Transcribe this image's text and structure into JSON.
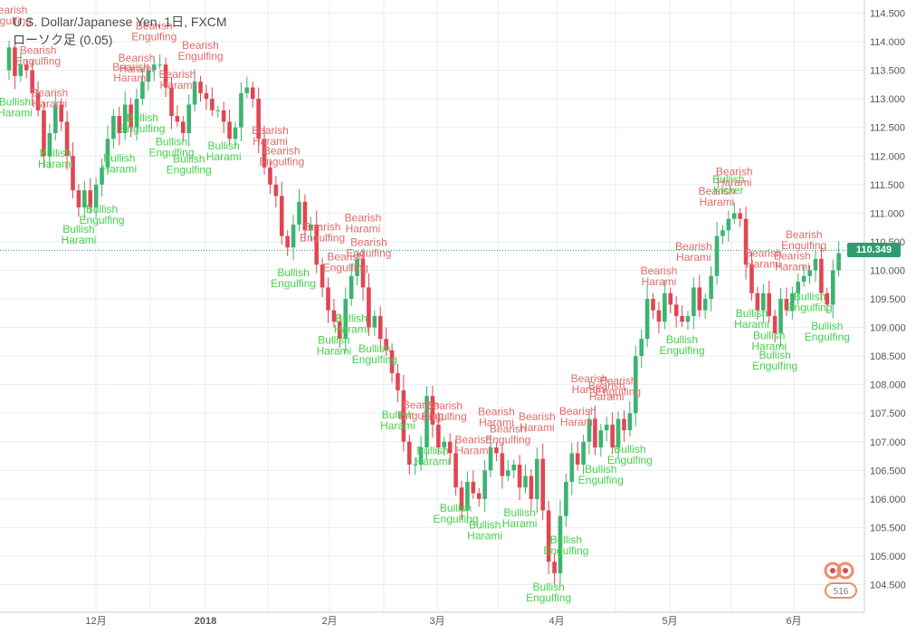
{
  "header": {
    "title": "U.S. Dollar/Japanese Yen, 1日, FXCM",
    "subtitle": "ローソク足 (0.05)"
  },
  "current_price": "110.349",
  "brand_counter": "516",
  "colors": {
    "bull": "#3cb371",
    "bear": "#e04652",
    "bull_label": "#44d14b",
    "bear_label": "#e36a6a",
    "grid": "#e8eef4",
    "axis_text": "#555555",
    "price_line": "#2e9e6e"
  },
  "chart_data": {
    "type": "candlestick",
    "title": "U.S. Dollar/Japanese Yen, 1日, FXCM",
    "ylim": [
      104.2,
      114.6
    ],
    "yticks": [
      "114.500",
      "114.000",
      "113.500",
      "113.000",
      "112.500",
      "112.000",
      "111.500",
      "111.000",
      "110.500",
      "110.000",
      "109.500",
      "109.000",
      "108.500",
      "108.000",
      "107.500",
      "107.000",
      "106.500",
      "106.000",
      "105.500",
      "105.000",
      "104.500"
    ],
    "xticks": [
      "12月",
      "2018",
      "2月",
      "3月",
      "4月",
      "5月",
      "6月"
    ],
    "last_price": 110.349,
    "grid": true,
    "closes": [
      113.9,
      113.4,
      113.6,
      113.5,
      113.1,
      112.8,
      112.0,
      112.4,
      112.9,
      112.6,
      112.0,
      111.4,
      111.1,
      111.4,
      111.1,
      111.5,
      111.8,
      112.3,
      112.7,
      112.4,
      112.9,
      112.5,
      113.0,
      113.3,
      113.5,
      113.6,
      113.6,
      113.2,
      112.7,
      112.6,
      112.4,
      112.9,
      113.3,
      113.1,
      113.0,
      112.8,
      112.8,
      112.6,
      112.3,
      112.5,
      113.1,
      113.2,
      113.0,
      112.3,
      111.8,
      111.5,
      111.3,
      110.6,
      110.4,
      110.8,
      111.2,
      110.7,
      110.8,
      110.1,
      109.7,
      109.3,
      109.1,
      108.8,
      109.5,
      109.9,
      110.2,
      109.7,
      109.0,
      109.2,
      108.8,
      108.6,
      108.2,
      107.9,
      107.0,
      106.6,
      106.6,
      106.9,
      107.8,
      107.3,
      106.9,
      107.0,
      106.8,
      106.2,
      105.8,
      106.3,
      106.1,
      106.0,
      106.5,
      106.9,
      106.8,
      106.4,
      106.5,
      106.6,
      106.2,
      106.4,
      106.0,
      106.7,
      105.8,
      104.9,
      104.7,
      105.7,
      106.3,
      106.8,
      106.6,
      107.0,
      107.4,
      106.9,
      107.2,
      107.3,
      106.9,
      107.4,
      107.2,
      107.5,
      108.5,
      108.8,
      109.5,
      109.3,
      109.1,
      109.6,
      109.4,
      109.2,
      109.1,
      109.2,
      109.7,
      109.3,
      109.5,
      109.9,
      110.6,
      110.7,
      110.9,
      111.0,
      110.9,
      110.1,
      109.6,
      109.3,
      109.6,
      109.2,
      108.9,
      109.5,
      109.3,
      109.6,
      109.8,
      109.9,
      110.0,
      110.2,
      109.6,
      109.4,
      110.0,
      110.3
    ],
    "annotations": [
      {
        "i": 0,
        "text": [
          "Bearish",
          "Engulfing"
        ],
        "pos": "above"
      },
      {
        "i": 1,
        "text": [
          "Bullish",
          "Harami"
        ],
        "pos": "below"
      },
      {
        "i": 5,
        "text": [
          "Bearish",
          "Engulfing"
        ],
        "pos": "above"
      },
      {
        "i": 7,
        "text": [
          "Bearish",
          "Harami"
        ],
        "pos": "above"
      },
      {
        "i": 8,
        "text": [
          "Bullish",
          "Harami"
        ],
        "pos": "below"
      },
      {
        "i": 12,
        "text": [
          "Bullish",
          "Harami"
        ],
        "pos": "below"
      },
      {
        "i": 16,
        "text": [
          "Bullish",
          "Engulfing"
        ],
        "pos": "below"
      },
      {
        "i": 19,
        "text": [
          "Bullish",
          "Harami"
        ],
        "pos": "below"
      },
      {
        "i": 21,
        "text": [
          "Bearish",
          "Harami"
        ],
        "pos": "above"
      },
      {
        "i": 22,
        "text": [
          "Bearish",
          "Harami"
        ],
        "pos": "above"
      },
      {
        "i": 23,
        "text": [
          "Bullish",
          "Engulfing"
        ],
        "pos": "below"
      },
      {
        "i": 25,
        "text": [
          "Bearish",
          "Engulfing"
        ],
        "pos": "above"
      },
      {
        "i": 28,
        "text": [
          "Bullish",
          "Engulfing"
        ],
        "pos": "below"
      },
      {
        "i": 29,
        "text": [
          "Bearish",
          "Harami"
        ],
        "pos": "above"
      },
      {
        "i": 31,
        "text": [
          "Bullish",
          "Engulfing"
        ],
        "pos": "below"
      },
      {
        "i": 33,
        "text": [
          "Bearish",
          "Engulfing"
        ],
        "pos": "above"
      },
      {
        "i": 37,
        "text": [
          "Bullish",
          "Harami"
        ],
        "pos": "below"
      },
      {
        "i": 45,
        "text": [
          "Bearish",
          "Harami"
        ],
        "pos": "above"
      },
      {
        "i": 47,
        "text": [
          "Bearish",
          "Engulfing"
        ],
        "pos": "above"
      },
      {
        "i": 49,
        "text": [
          "Bullish",
          "Engulfing"
        ],
        "pos": "below"
      },
      {
        "i": 54,
        "text": [
          "Bearish",
          "Engulfing"
        ],
        "pos": "above"
      },
      {
        "i": 56,
        "text": [
          "Bullish",
          "Harami"
        ],
        "pos": "below"
      },
      {
        "i": 58,
        "text": [
          "Bearish",
          "Engulfing"
        ],
        "pos": "above"
      },
      {
        "i": 59,
        "text": [
          "Bullish",
          "Harami"
        ],
        "pos": "below"
      },
      {
        "i": 61,
        "text": [
          "Bearish",
          "Harami"
        ],
        "pos": "above"
      },
      {
        "i": 62,
        "text": [
          "Bearish",
          "Engulfing"
        ],
        "pos": "above"
      },
      {
        "i": 63,
        "text": [
          "Bullish",
          "Engulfing"
        ],
        "pos": "below"
      },
      {
        "i": 67,
        "text": [
          "Bullish",
          "Harami"
        ],
        "pos": "below"
      },
      {
        "i": 71,
        "text": [
          "Bearish",
          "Engulfing"
        ],
        "pos": "above"
      },
      {
        "i": 73,
        "text": [
          "Bullish",
          "Harami"
        ],
        "pos": "below"
      },
      {
        "i": 75,
        "text": [
          "Bearish",
          "Engulfing"
        ],
        "pos": "above"
      },
      {
        "i": 77,
        "text": [
          "Bullish",
          "Engulfing"
        ],
        "pos": "below"
      },
      {
        "i": 80,
        "text": [
          "Bearish",
          "Harami"
        ],
        "pos": "above"
      },
      {
        "i": 82,
        "text": [
          "Bullish",
          "Harami"
        ],
        "pos": "below"
      },
      {
        "i": 84,
        "text": [
          "Bearish",
          "Harami"
        ],
        "pos": "above"
      },
      {
        "i": 86,
        "text": [
          "Bearish",
          "Engulfing"
        ],
        "pos": "above"
      },
      {
        "i": 88,
        "text": [
          "Bullish",
          "Harami"
        ],
        "pos": "below"
      },
      {
        "i": 91,
        "text": [
          "Bearish",
          "Harami"
        ],
        "pos": "above"
      },
      {
        "i": 93,
        "text": [
          "Bullish",
          "Engulfing"
        ],
        "pos": "below"
      },
      {
        "i": 96,
        "text": [
          "Bullish",
          "Engulfing"
        ],
        "pos": "below"
      },
      {
        "i": 98,
        "text": [
          "Bearish",
          "Harami"
        ],
        "pos": "above"
      },
      {
        "i": 100,
        "text": [
          "Bearish",
          "Harami"
        ],
        "pos": "above"
      },
      {
        "i": 102,
        "text": [
          "Bullish",
          "Engulfing"
        ],
        "pos": "below"
      },
      {
        "i": 103,
        "text": [
          "Bearish",
          "Harami"
        ],
        "pos": "above"
      },
      {
        "i": 105,
        "text": [
          "Bearish",
          "Engulfing"
        ],
        "pos": "above"
      },
      {
        "i": 107,
        "text": [
          "Bullish",
          "Engulfing"
        ],
        "pos": "below"
      },
      {
        "i": 112,
        "text": [
          "Bearish",
          "Harami"
        ],
        "pos": "above"
      },
      {
        "i": 116,
        "text": [
          "Bullish",
          "Engulfing"
        ],
        "pos": "below"
      },
      {
        "i": 118,
        "text": [
          "Bearish",
          "Harami"
        ],
        "pos": "above"
      },
      {
        "i": 122,
        "text": [
          "Bearish",
          "Harami"
        ],
        "pos": "above"
      },
      {
        "i": 124,
        "text": [
          "Bullish",
          "Kicker"
        ],
        "pos": "above"
      },
      {
        "i": 125,
        "text": [
          "Bearish",
          "Harami"
        ],
        "pos": "above"
      },
      {
        "i": 128,
        "text": [
          "Bullish",
          "Harami"
        ],
        "pos": "below"
      },
      {
        "i": 130,
        "text": [
          "Bearish",
          "Harami"
        ],
        "pos": "above"
      },
      {
        "i": 131,
        "text": [
          "Bullish",
          "Harami"
        ],
        "pos": "below"
      },
      {
        "i": 132,
        "text": [
          "Bullish",
          "Engulfing"
        ],
        "pos": "below"
      },
      {
        "i": 135,
        "text": [
          "Bearish",
          "Harami"
        ],
        "pos": "above"
      },
      {
        "i": 137,
        "text": [
          "Bearish",
          "Engulfing"
        ],
        "pos": "above"
      },
      {
        "i": 138,
        "text": [
          "Bullish",
          "Engulfing"
        ],
        "pos": "below"
      },
      {
        "i": 141,
        "text": [
          "Bullish",
          "Engulfing"
        ],
        "pos": "below"
      }
    ]
  }
}
